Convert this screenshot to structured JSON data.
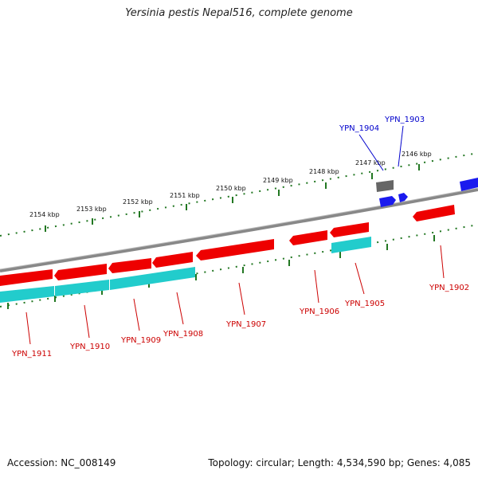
{
  "title": "Yersinia pestis Nepal516, complete genome",
  "footer": {
    "accession": "Accession: NC_008149",
    "summary": "Topology: circular; Length: 4,534,590 bp; Genes: 4,085"
  },
  "colors": {
    "forward_gene": "#ee0000",
    "reverse_gene": "#ee0000",
    "cds_teal": "#22cccc",
    "blue_gene": "#1a1aee",
    "grey_gene": "#666666",
    "backbone": "#888888",
    "ticks": "#227722",
    "label_red": "#cc0000",
    "label_blue": "#0000cc"
  },
  "scale_labels": [
    "2154 kbp",
    "2153 kbp",
    "2152 kbp",
    "2151 kbp",
    "2150 kbp",
    "2149 kbp",
    "2148 kbp",
    "2147 kbp",
    "2146 kbp"
  ],
  "gene_labels": {
    "YPN_1911": "YPN_1911",
    "YPN_1910": "YPN_1910",
    "YPN_1909": "YPN_1909",
    "YPN_1908": "YPN_1908",
    "YPN_1907": "YPN_1907",
    "YPN_1906": "YPN_1906",
    "YPN_1905": "YPN_1905",
    "YPN_1904": "YPN_1904",
    "YPN_1903": "YPN_1903",
    "YPN_1902": "YPN_1902"
  }
}
